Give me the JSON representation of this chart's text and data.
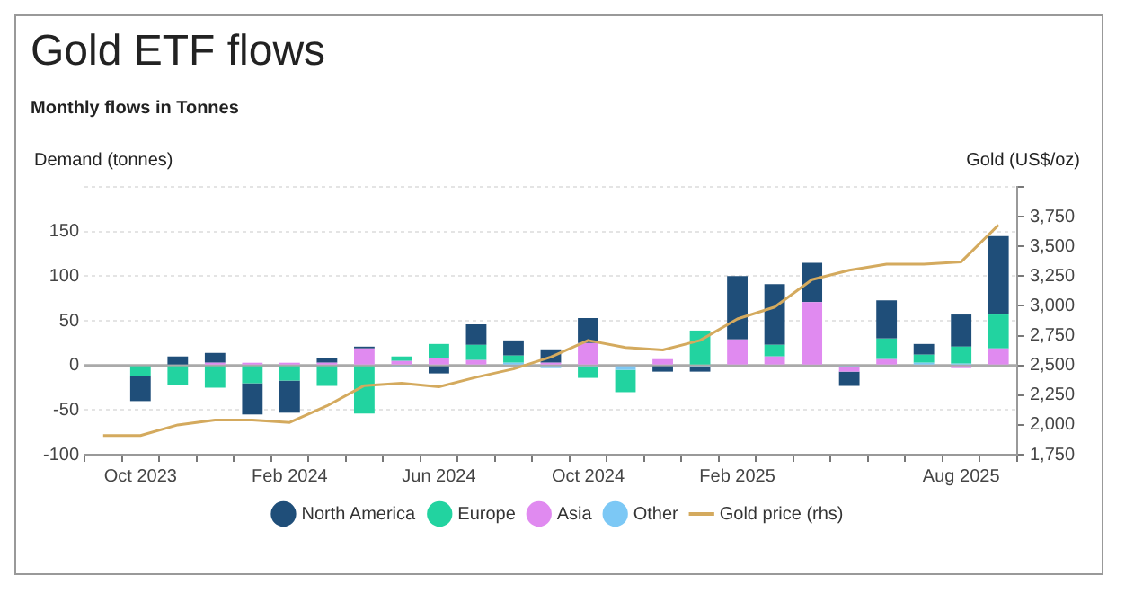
{
  "chart_data": {
    "type": "bar",
    "title": "Gold ETF flows",
    "subtitle": "Monthly flows in Tonnes",
    "ylabel": "Demand (tonnes)",
    "y2label": "Gold (US$/oz)",
    "categories": [
      null,
      "Oct 2023",
      null,
      null,
      null,
      "Feb 2024",
      null,
      null,
      null,
      "Jun 2024",
      null,
      null,
      null,
      "Oct 2024",
      null,
      null,
      null,
      "Feb 2025",
      null,
      null,
      null,
      null,
      null,
      "Aug 2025",
      null
    ],
    "stacked": true,
    "ylim": [
      -100,
      200
    ],
    "yticks": [
      -100,
      -50,
      0,
      50,
      100,
      150,
      {
        "value": 200,
        "label": null
      }
    ],
    "y2lim": [
      1750,
      4000
    ],
    "y2ticks": [
      {
        "value": 1750,
        "label": "1,750"
      },
      {
        "value": 2000,
        "label": "2,000"
      },
      {
        "value": 2250,
        "label": "2,250"
      },
      {
        "value": 2500,
        "label": "2,500"
      },
      {
        "value": 2750,
        "label": "2,750"
      },
      {
        "value": 3000,
        "label": "3,000"
      },
      {
        "value": 3250,
        "label": "3,250"
      },
      {
        "value": 3500,
        "label": "3,500"
      },
      {
        "value": 3750,
        "label": "3,750"
      },
      {
        "value": 4000,
        "label": null
      }
    ],
    "grid": "y",
    "legend": "bottom",
    "marker": "none",
    "series": [
      {
        "name": "Other",
        "color": "#7cc8f5",
        "values": [
          null,
          0,
          0,
          0,
          0,
          0,
          0,
          0,
          -2,
          0,
          0,
          3,
          -3,
          -2,
          -5,
          0,
          -2,
          1,
          0,
          0,
          -2,
          0,
          3,
          2,
          1
        ]
      },
      {
        "name": "Asia",
        "color": "#e08af0",
        "values": [
          null,
          0,
          0,
          3,
          3,
          3,
          3,
          19,
          5,
          8,
          6,
          0,
          3,
          25,
          0,
          7,
          1,
          28,
          10,
          71,
          -5,
          7,
          0,
          -3,
          18
        ]
      },
      {
        "name": "Europe",
        "color": "#22d3a0",
        "values": [
          null,
          -12,
          -22,
          -25,
          -20,
          -17,
          -23,
          -54,
          5,
          16,
          17,
          8,
          0,
          -12,
          -25,
          0,
          38,
          0,
          13,
          0,
          0,
          23,
          9,
          19,
          38
        ]
      },
      {
        "name": "North America",
        "color": "#1f4e79",
        "values": [
          null,
          -28,
          10,
          11,
          -35,
          -36,
          5,
          2,
          0,
          -9,
          23,
          17,
          15,
          28,
          0,
          -7,
          -5,
          71,
          68,
          44,
          -16,
          43,
          12,
          36,
          88
        ]
      },
      {
        "name": "Gold price (rhs)",
        "type": "line",
        "axis": "y2",
        "color": "#d4aa5e",
        "values": [
          1910,
          1910,
          2000,
          2040,
          2040,
          2020,
          2160,
          2330,
          2350,
          2320,
          2400,
          2470,
          2570,
          2710,
          2650,
          2630,
          2710,
          2890,
          2990,
          3220,
          3300,
          3350,
          3350,
          3370,
          3680
        ]
      }
    ],
    "ref_lines": [
      {
        "axis": "y",
        "value": 0,
        "color": "#aaaaaa"
      }
    ]
  }
}
